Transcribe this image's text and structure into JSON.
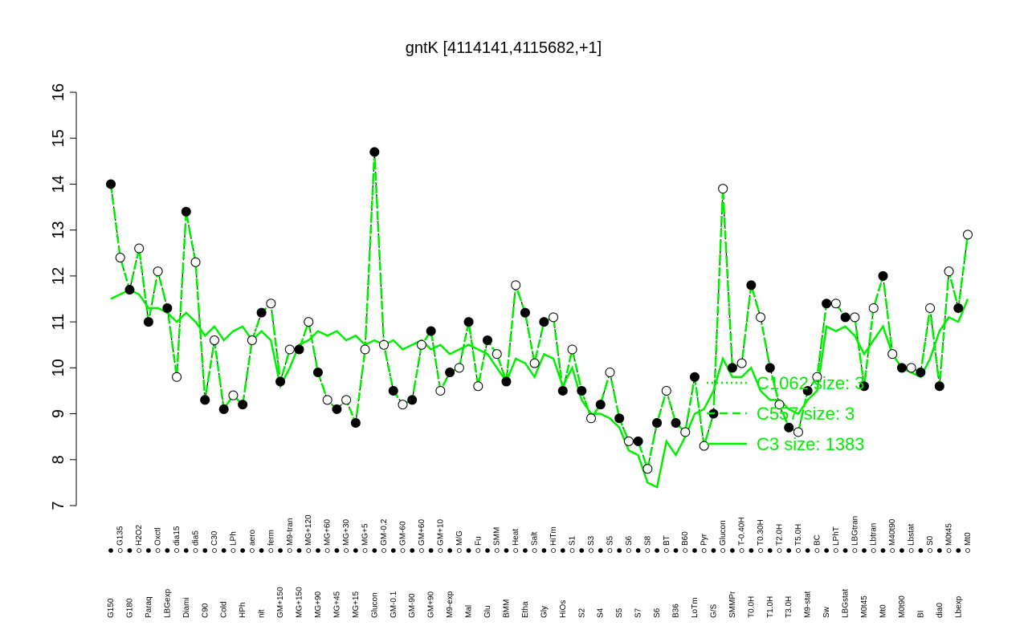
{
  "chart_data": {
    "type": "line",
    "title": "gntK [4114141,4115682,+1]",
    "categories": [
      "G150",
      "G135",
      "G180",
      "H2O2",
      "Paraq",
      "Oxctl",
      "LBGexp",
      "dia15",
      "Diami",
      "dia5",
      "C90",
      "C30",
      "Cold",
      "LPh",
      "HPh",
      "aero",
      "nit",
      "ferm",
      "GM+150",
      "M9-tran",
      "MG+150",
      "MG+120",
      "MG+90",
      "MG+60",
      "MG+45",
      "MG+30",
      "MG+15",
      "MG+5",
      "Glucon",
      "GM-0.2",
      "GM-0.1",
      "GM-60",
      "GM-90",
      "GM+60",
      "GM+90",
      "GM+10",
      "M9-exp",
      "M/G",
      "Mal",
      "Fu",
      "Glu",
      "SMM",
      "BMM",
      "Heat",
      "Etha",
      "Salt",
      "Gly",
      "HiTm",
      "HiOs",
      "S1",
      "S2",
      "S3",
      "S4",
      "S5",
      "S5",
      "S6",
      "S7",
      "S8",
      "S6",
      "BT",
      "B36",
      "B60",
      "LoTm",
      "Pyr",
      "G/S",
      "Glucon",
      "SMMPr",
      "T-0.40H",
      "T0.0H",
      "T0.30H",
      "T1.0H",
      "T2.0H",
      "T3.0H",
      "T5.0H",
      "M9-stat",
      "BC",
      "Sw",
      "LPhT",
      "LBGstat",
      "LBGtran",
      "M0t45",
      "Lbtran",
      "Mt0",
      "M40t90",
      "M0t90",
      "Lbstat",
      "BI",
      "S0",
      "dia0",
      "M0t45",
      "Lbexp",
      "Mt0"
    ],
    "series": [
      {
        "name": "C1062 size: 3",
        "color": "#00ee00",
        "dash": "dotted",
        "values": [
          14.0,
          12.4,
          11.7,
          12.6,
          11.0,
          12.1,
          11.3,
          9.8,
          13.4,
          12.3,
          9.3,
          10.6,
          9.1,
          9.4,
          9.2,
          10.6,
          11.2,
          11.4,
          9.7,
          10.4,
          10.4,
          11.0,
          9.9,
          9.3,
          9.1,
          9.3,
          8.8,
          10.4,
          14.7,
          10.5,
          9.5,
          9.2,
          9.3,
          10.5,
          10.8,
          9.5,
          9.9,
          10.0,
          11.0,
          9.6,
          10.6,
          10.3,
          9.7,
          11.8,
          11.2,
          10.1,
          11.0,
          11.1,
          9.5,
          10.4,
          9.5,
          8.9,
          9.2,
          9.9,
          8.9,
          8.4,
          8.4,
          7.8,
          8.8,
          9.5,
          8.8,
          8.6,
          9.8,
          8.3,
          9.0,
          13.9,
          10.0,
          10.1,
          11.8,
          11.1,
          10.0,
          9.2,
          8.7,
          8.6,
          9.5,
          9.8,
          11.4,
          11.4,
          11.1,
          11.1,
          9.6,
          11.3,
          12.0,
          10.3,
          10.0,
          10.0,
          9.9,
          11.3,
          9.6,
          12.1,
          11.3,
          12.9
        ]
      },
      {
        "name": "C557 size: 3",
        "color": "#00ee00",
        "dash": "dashed",
        "values": [
          14.0,
          12.4,
          11.7,
          12.6,
          11.0,
          12.1,
          11.3,
          9.8,
          13.4,
          12.3,
          9.3,
          10.6,
          9.1,
          9.4,
          9.2,
          10.6,
          11.2,
          11.4,
          9.7,
          10.4,
          10.4,
          11.0,
          9.9,
          9.3,
          9.1,
          9.3,
          8.8,
          10.4,
          14.7,
          10.5,
          9.5,
          9.2,
          9.3,
          10.5,
          10.8,
          9.5,
          9.9,
          10.0,
          11.0,
          9.6,
          10.6,
          10.3,
          9.7,
          11.8,
          11.2,
          10.1,
          11.0,
          11.1,
          9.5,
          10.4,
          9.5,
          8.9,
          9.2,
          9.9,
          8.9,
          8.4,
          8.4,
          7.8,
          8.8,
          9.5,
          8.8,
          8.6,
          9.8,
          8.3,
          9.0,
          13.9,
          10.0,
          10.1,
          11.8,
          11.1,
          10.0,
          9.2,
          8.7,
          8.6,
          9.5,
          9.8,
          11.4,
          11.4,
          11.1,
          11.1,
          9.6,
          11.3,
          12.0,
          10.3,
          10.0,
          10.0,
          9.9,
          11.3,
          9.6,
          12.1,
          11.3,
          12.9
        ]
      },
      {
        "name": "C3 size: 1383",
        "color": "#00ee00",
        "dash": "solid",
        "values": [
          11.5,
          11.6,
          11.7,
          11.6,
          11.3,
          11.3,
          11.2,
          11.0,
          11.2,
          11.0,
          10.7,
          10.9,
          10.6,
          10.8,
          10.9,
          10.6,
          10.8,
          10.6,
          9.6,
          10.0,
          10.5,
          10.6,
          10.8,
          10.7,
          10.8,
          10.6,
          10.7,
          10.5,
          10.6,
          10.5,
          10.6,
          10.4,
          10.5,
          10.6,
          10.4,
          10.5,
          10.3,
          10.4,
          10.5,
          10.4,
          10.3,
          10.0,
          9.7,
          10.2,
          10.1,
          9.8,
          10.3,
          10.2,
          9.6,
          10.0,
          9.3,
          9.0,
          9.0,
          8.9,
          8.7,
          8.2,
          8.1,
          7.5,
          7.4,
          8.4,
          8.1,
          8.5,
          9.0,
          9.1,
          9.5,
          10.2,
          9.8,
          9.8,
          10.0,
          9.5,
          9.3,
          9.3,
          9.1,
          9.0,
          9.3,
          9.5,
          10.9,
          10.8,
          10.9,
          10.7,
          10.3,
          10.6,
          10.9,
          10.3,
          10.0,
          9.9,
          9.8,
          10.2,
          10.8,
          11.1,
          11.0,
          11.5
        ]
      }
    ],
    "ylim": [
      7,
      16
    ],
    "yticks": [
      7,
      8,
      9,
      10,
      11,
      12,
      13,
      14,
      15,
      16
    ]
  }
}
